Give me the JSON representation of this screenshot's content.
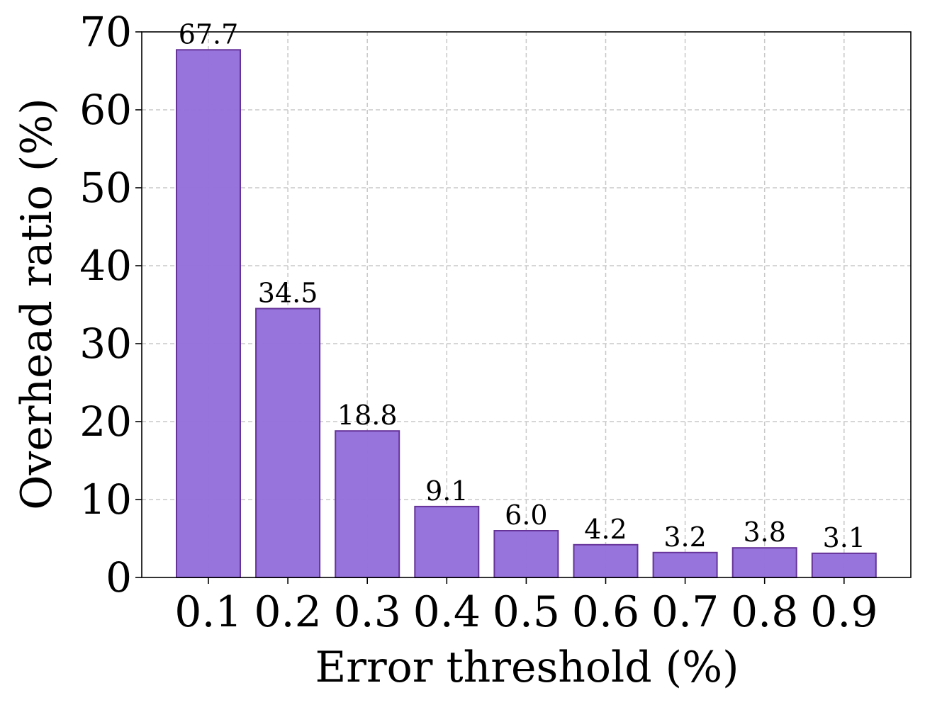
{
  "chart_data": {
    "type": "bar",
    "categories": [
      "0.1",
      "0.2",
      "0.3",
      "0.4",
      "0.5",
      "0.6",
      "0.7",
      "0.8",
      "0.9"
    ],
    "values": [
      67.7,
      34.5,
      18.8,
      9.1,
      6.0,
      4.2,
      3.2,
      3.8,
      3.1
    ],
    "data_labels": [
      "67.7",
      "34.5",
      "18.8",
      "9.1",
      "6.0",
      "4.2",
      "3.2",
      "3.8",
      "3.1"
    ],
    "xlabel": "Error threshold (%)",
    "ylabel": "Overhead ratio (%)",
    "ylim": [
      0,
      70
    ],
    "yticks": [
      0,
      10,
      20,
      30,
      40,
      50,
      60,
      70
    ],
    "grid": true,
    "bar_color": "#9370db",
    "bar_edge_color": "#663399",
    "grid_color": "#c8c8c8"
  }
}
